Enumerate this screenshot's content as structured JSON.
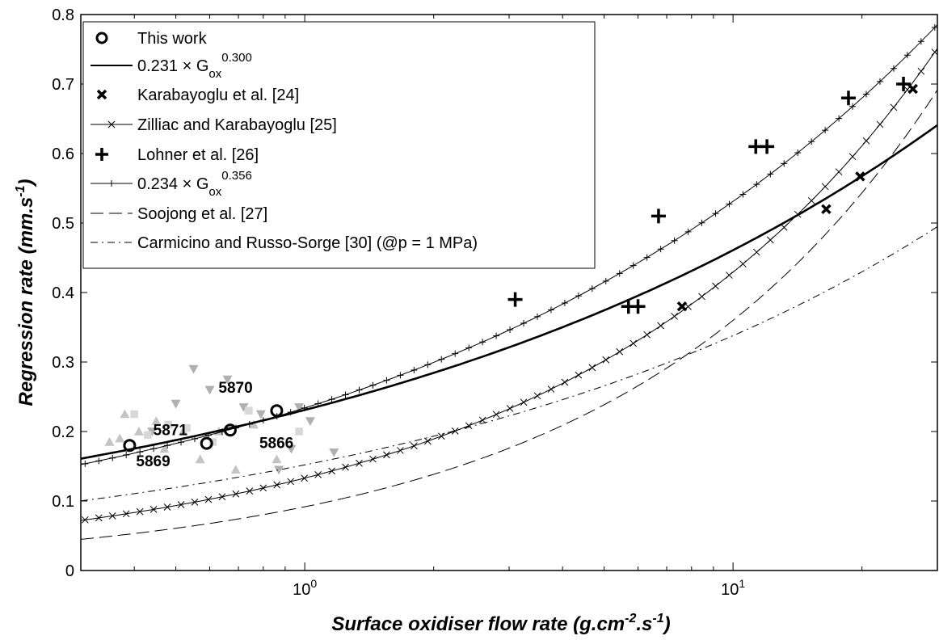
{
  "chart_data": {
    "type": "scatter",
    "xscale": "log",
    "xlim": [
      0.3,
      30
    ],
    "ylim": [
      0,
      0.8
    ],
    "grid": false,
    "legend_position": "top-left",
    "xlabel": "Surface oxidiser flow rate (g.cm-2.s-1)",
    "ylabel": "Regression rate (mm.s-1)",
    "xlabel_parts": {
      "pre": "Surface oxidiser flow rate (g.cm",
      "sup1": "-2",
      "mid": ".s",
      "sup2": "-1",
      "post": ")"
    },
    "ylabel_parts": {
      "pre": "Regression rate (mm.s",
      "sup": "-1",
      "post": ")"
    },
    "x_ticks": [
      {
        "value": 1,
        "base": "10",
        "exp": "0"
      },
      {
        "value": 10,
        "base": "10",
        "exp": "1"
      }
    ],
    "y_ticks": [
      {
        "value": 0,
        "label": "0"
      },
      {
        "value": 0.1,
        "label": "0.1"
      },
      {
        "value": 0.2,
        "label": "0.2"
      },
      {
        "value": 0.3,
        "label": "0.3"
      },
      {
        "value": 0.4,
        "label": "0.4"
      },
      {
        "value": 0.5,
        "label": "0.5"
      },
      {
        "value": 0.6,
        "label": "0.6"
      },
      {
        "value": 0.7,
        "label": "0.7"
      },
      {
        "value": 0.8,
        "label": "0.8"
      }
    ],
    "series": [
      {
        "name": "This work",
        "kind": "points",
        "marker": "circle",
        "x": [
          0.39,
          0.59,
          0.67,
          0.86
        ],
        "y": [
          0.18,
          0.183,
          0.202,
          0.23
        ],
        "point_labels": [
          "5869",
          "5871",
          "5866",
          "5870"
        ]
      },
      {
        "name": "0.231 × Gox^0.300",
        "legend_parts": {
          "pre": "0.231 × G",
          "sub": "ox",
          "sup": "0.300"
        },
        "kind": "power",
        "a": 0.231,
        "b": 0.3,
        "line": "solid-bold"
      },
      {
        "name": "Karabayoglu et al. [24]",
        "kind": "points",
        "marker": "x",
        "x": [
          7.6,
          16.5,
          19.8,
          26.3
        ],
        "y": [
          0.38,
          0.52,
          0.567,
          0.693
        ]
      },
      {
        "name": "Zilliac and Karabayoglu [25]",
        "kind": "power",
        "a": 0.133,
        "b": 0.509,
        "line": "solid-thin",
        "marker": "x"
      },
      {
        "name": "Lohner et al. [26]",
        "kind": "points",
        "marker": "plus",
        "x": [
          3.1,
          5.7,
          6.0,
          6.7,
          11.3,
          12.0,
          18.6,
          25.0
        ],
        "y": [
          0.39,
          0.38,
          0.38,
          0.51,
          0.61,
          0.61,
          0.68,
          0.7
        ]
      },
      {
        "name": "0.234 × Gox^0.356",
        "legend_parts": {
          "pre": "0.234 × G",
          "sub": "ox",
          "sup": "0.356"
        },
        "kind": "power",
        "a": 0.234,
        "b": 0.356,
        "line": "solid-thin",
        "marker": "plus"
      },
      {
        "name": "Soojong et al. [27]",
        "kind": "power",
        "a": 0.0917,
        "b": 0.594,
        "line": "dashed"
      },
      {
        "name": "Carmicino and Russo-Sorge [30] (@p = 1 MPa)",
        "kind": "power",
        "a": 0.152,
        "b": 0.347,
        "line": "dashdot"
      }
    ],
    "background_points": [
      {
        "marker": "tri-up",
        "shade": "light",
        "x": [
          0.37,
          0.38,
          0.41,
          0.45,
          0.47,
          0.52,
          0.57,
          0.63,
          0.69,
          0.76,
          0.86,
          0.35
        ],
        "y": [
          0.19,
          0.225,
          0.2,
          0.215,
          0.175,
          0.2,
          0.16,
          0.2,
          0.145,
          0.21,
          0.16,
          0.185
        ]
      },
      {
        "marker": "tri-down",
        "shade": "mid",
        "x": [
          0.55,
          0.6,
          0.66,
          0.72,
          0.79,
          0.93,
          0.97,
          1.03,
          1.17,
          0.87,
          0.5,
          0.44
        ],
        "y": [
          0.29,
          0.26,
          0.275,
          0.235,
          0.225,
          0.175,
          0.235,
          0.215,
          0.17,
          0.145,
          0.24,
          0.2
        ]
      },
      {
        "marker": "square",
        "shade": "pale",
        "x": [
          0.4,
          0.43,
          0.48,
          0.53,
          0.61,
          0.74,
          0.97
        ],
        "y": [
          0.225,
          0.195,
          0.21,
          0.205,
          0.185,
          0.23,
          0.2
        ]
      }
    ]
  }
}
